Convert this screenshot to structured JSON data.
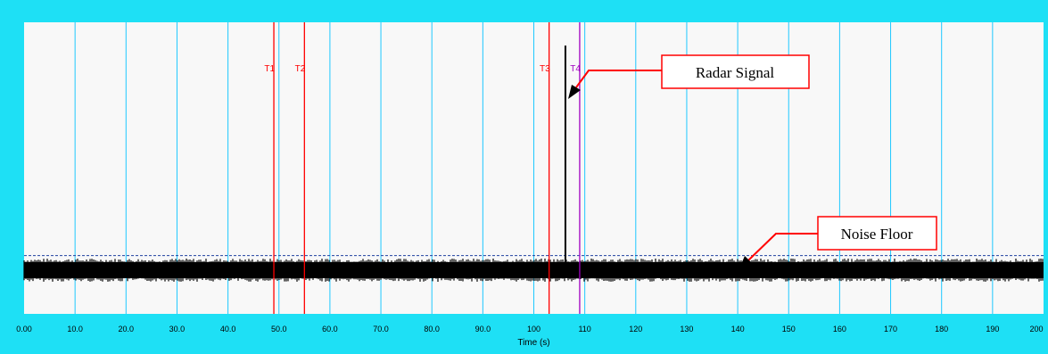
{
  "chart_data": {
    "type": "line",
    "title": "",
    "xlabel": "Time (s)",
    "ylabel": "",
    "xlim": [
      0,
      200
    ],
    "ylim": [
      0,
      1
    ],
    "grid": "vertical",
    "xticks": [
      "0.00",
      "10.0",
      "20.0",
      "30.0",
      "40.0",
      "50.0",
      "60.0",
      "70.0",
      "80.0",
      "90.0",
      "100",
      "110",
      "120",
      "130",
      "140",
      "150",
      "160",
      "170",
      "180",
      "190",
      "200"
    ],
    "markers": [
      {
        "label": "T1",
        "x": 49.0,
        "color": "#ff0000"
      },
      {
        "label": "T2",
        "x": 55.0,
        "color": "#ff0000"
      },
      {
        "label": "T3",
        "x": 103.0,
        "color": "#ff0000"
      },
      {
        "label": "T4",
        "x": 109.0,
        "color": "#a000c0"
      }
    ],
    "signal": {
      "x": 106.2,
      "y_peak": 0.92,
      "noise_level": 0.15
    },
    "noise_floor": 0.2,
    "annotations": [
      {
        "text": "Radar Signal",
        "target_x": 106.2,
        "target_y": 0.8
      },
      {
        "text": "Noise Floor",
        "target_x": 141.5,
        "target_y": 0.2
      }
    ],
    "colors": {
      "frame": "#1ee0f5",
      "plot_bg": "#f8f8f8",
      "grid": "#1ec8ff",
      "signal": "#000000",
      "noise_floor": "#2040a0"
    }
  }
}
